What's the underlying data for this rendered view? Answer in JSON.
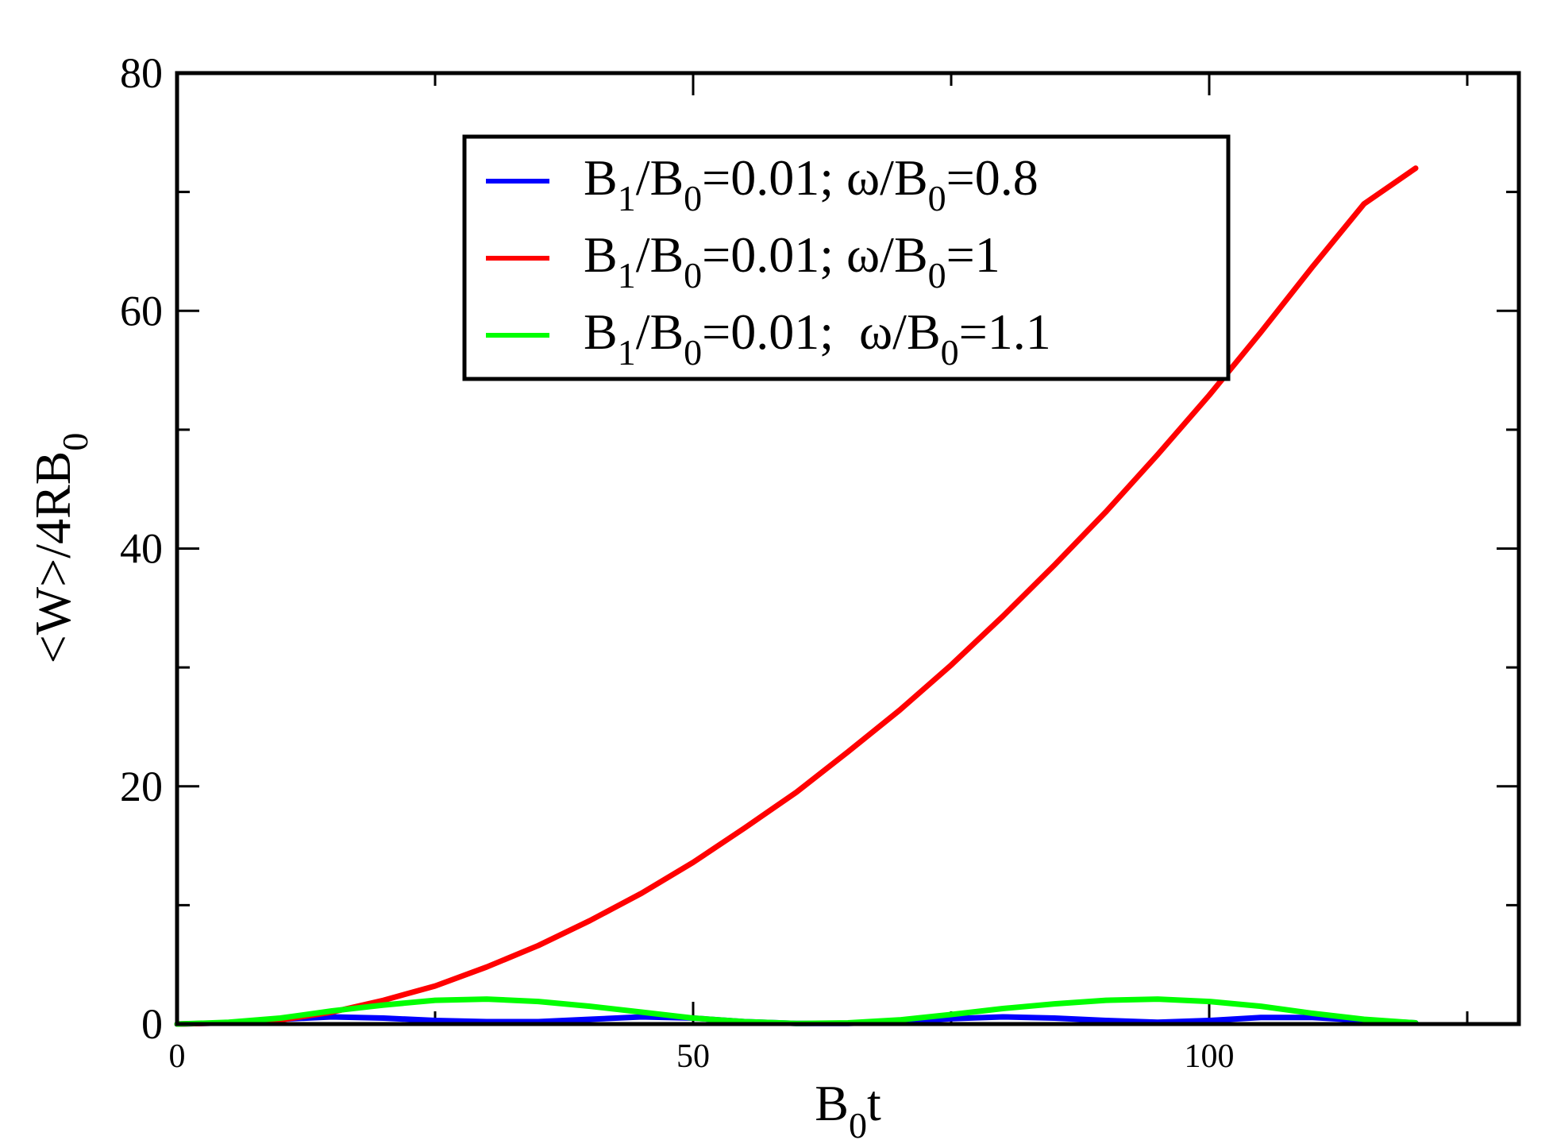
{
  "chart_data": {
    "type": "line",
    "xlabel": {
      "main": "B",
      "sub": "0",
      "tail": "t"
    },
    "ylabel": {
      "main": "<W>/4RB",
      "sub": "0"
    },
    "xlim": [
      0,
      130
    ],
    "ylim": [
      0,
      80
    ],
    "x_major_ticks": [
      0,
      50,
      100
    ],
    "x_tick_labels": [
      "0",
      "50",
      "100"
    ],
    "x_minor_ticks": [
      25,
      75,
      125
    ],
    "y_major_ticks": [
      0,
      20,
      40,
      60,
      80
    ],
    "y_tick_labels": [
      "0",
      "20",
      "40",
      "60",
      "80"
    ],
    "y_minor_ticks": [
      10,
      30,
      50,
      70
    ],
    "grid": false,
    "legend_position": "top-center",
    "series": [
      {
        "name": "B1/B0=0.01; ω/B0=0.8",
        "legend_parts": [
          "B",
          "1",
          "/B",
          "0",
          "=0.01; ω/B",
          "0",
          "=0.8"
        ],
        "color": "#0000ff",
        "x": [
          0,
          5,
          10,
          15,
          20,
          25,
          30,
          35,
          40,
          45,
          50,
          55,
          60,
          65,
          70,
          75,
          80,
          85,
          90,
          95,
          100,
          105,
          110,
          115,
          120
        ],
        "y": [
          0,
          0.1,
          0.4,
          0.6,
          0.5,
          0.3,
          0.2,
          0.2,
          0.4,
          0.6,
          0.5,
          0.2,
          0.05,
          0.05,
          0.2,
          0.45,
          0.6,
          0.5,
          0.3,
          0.15,
          0.3,
          0.55,
          0.55,
          0.3,
          0.1
        ]
      },
      {
        "name": "B1/B0=0.01; ω/B0=1",
        "legend_parts": [
          "B",
          "1",
          "/B",
          "0",
          "=0.01; ω/B",
          "0",
          "=1"
        ],
        "color": "#ff0000",
        "x": [
          0,
          5,
          10,
          15,
          20,
          25,
          30,
          35,
          40,
          45,
          50,
          55,
          60,
          65,
          70,
          75,
          80,
          85,
          90,
          95,
          100,
          105,
          110,
          115,
          120
        ],
        "y": [
          0,
          0.1,
          0.35,
          1.0,
          2.0,
          3.2,
          4.8,
          6.6,
          8.7,
          11.0,
          13.6,
          16.5,
          19.5,
          22.9,
          26.4,
          30.2,
          34.3,
          38.6,
          43.1,
          47.9,
          52.9,
          58.2,
          63.7,
          69.0,
          72.0
        ]
      },
      {
        "name": "B1/B0=0.01;  ω/B0=1.1",
        "legend_parts": [
          "B",
          "1",
          "/B",
          "0",
          "=0.01;  ω/B",
          "0",
          "=1.1"
        ],
        "color": "#00ff00",
        "x": [
          0,
          5,
          10,
          15,
          20,
          25,
          30,
          35,
          40,
          45,
          50,
          55,
          60,
          65,
          70,
          75,
          80,
          85,
          90,
          95,
          100,
          105,
          110,
          115,
          120
        ],
        "y": [
          0,
          0.15,
          0.5,
          1.1,
          1.6,
          2.0,
          2.1,
          1.9,
          1.5,
          1.0,
          0.5,
          0.2,
          0.05,
          0.1,
          0.35,
          0.8,
          1.3,
          1.7,
          2.0,
          2.1,
          1.9,
          1.5,
          0.9,
          0.4,
          0.1
        ]
      }
    ]
  }
}
